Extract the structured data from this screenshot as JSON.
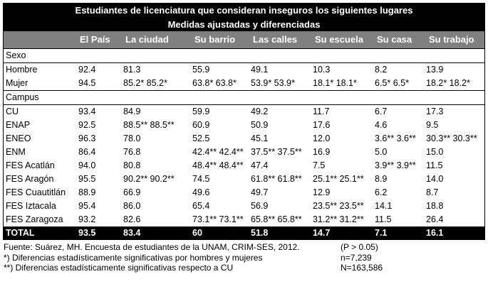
{
  "title": "Estudiantes de licenciatura que consideran inseguros los siguientes lugares",
  "subtitle": "Medidas ajustadas y diferenciadas",
  "columns": [
    "",
    "El País",
    "La ciudad",
    "Su barrio",
    "Las calles",
    "Su escuela",
    "Su casa",
    "Su trabajo"
  ],
  "section_sexo": "Sexo",
  "rows_sexo": [
    [
      "Hombre",
      "92.4",
      "81.3",
      "55.9",
      "49.1",
      "10.3",
      "8.2",
      "13.9"
    ],
    [
      "Mujer",
      "94.5",
      "85.2* 85.2*",
      "63.8* 63.8*",
      "53.9* 53.9*",
      "18.1* 18.1*",
      "6.5* 6.5*",
      "18.2* 18.2*"
    ]
  ],
  "section_campus": "Campus",
  "rows_campus": [
    [
      "CU",
      "93.4",
      "84.9",
      "59.9",
      "49.2",
      "11.7",
      "6.7",
      "17.3"
    ],
    [
      "ENAP",
      "92.5",
      "88.5** 88.5**",
      "60.9",
      "50.9",
      "17.6",
      "4.6",
      "9.5"
    ],
    [
      "ENEO",
      "96.3",
      "78.0",
      "52.5",
      "45.1",
      "12.0",
      "3.6** 3.6**",
      "30.3** 30.3**"
    ],
    [
      "ENM",
      "86.4",
      "76.8",
      "42.4** 42.4**",
      "37.5** 37.5**",
      "16.9",
      "5.0",
      "15.0"
    ],
    [
      "FES Acatlán",
      "94.0",
      "80.8",
      "48.4** 48.4**",
      "47.4",
      "7.5",
      "3.9** 3.9**",
      "11.5"
    ],
    [
      "FES Aragón",
      "95.5",
      "90.2** 90.2**",
      "74.5",
      "61.8** 61.8**",
      "25.1** 25.1**",
      "8.9",
      "14.0"
    ],
    [
      "FES Cuautitlán",
      "88.9",
      "66.9",
      "49.6",
      "49.7",
      "12.9",
      "6.2",
      "8.7"
    ],
    [
      "FES Iztacala",
      "95.4",
      "86.0",
      "65.4",
      "56.9",
      "23.5** 23.5**",
      "14.1",
      "18.8"
    ],
    [
      "FES Zaragoza",
      "93.2",
      "82.6",
      "73.1** 73.1**",
      "65.8** 65.8**",
      "31.2** 31.2**",
      "11.5",
      "26.4"
    ]
  ],
  "total_row": [
    "TOTAL",
    "93.5",
    "83.4",
    "60",
    "51.8",
    "14.7",
    "7.1",
    "16.1"
  ],
  "notes": {
    "source": "Fuente: Suárez, MH. Encuesta de estudiantes de la UNAM, CRIM-SES, 2012.",
    "note1": "*) Diferencias estadísticamente significativas por hombres y mujeres",
    "note2": "**) Diferencias estadísticamente significativas respecto a CU",
    "p": "(P > 0.05)",
    "n": "n=7,239",
    "N": "N=163,586"
  }
}
